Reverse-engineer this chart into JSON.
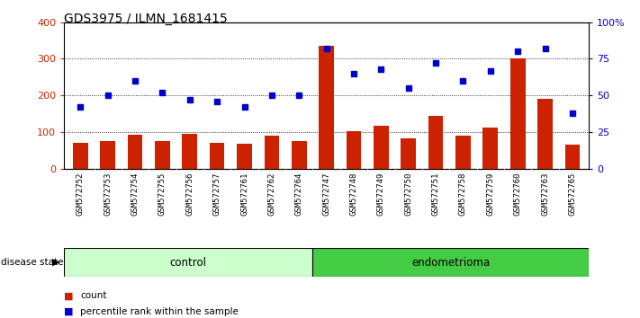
{
  "title": "GDS3975 / ILMN_1681415",
  "samples": [
    "GSM572752",
    "GSM572753",
    "GSM572754",
    "GSM572755",
    "GSM572756",
    "GSM572757",
    "GSM572761",
    "GSM572762",
    "GSM572764",
    "GSM572747",
    "GSM572748",
    "GSM572749",
    "GSM572750",
    "GSM572751",
    "GSM572758",
    "GSM572759",
    "GSM572760",
    "GSM572763",
    "GSM572765"
  ],
  "counts": [
    70,
    75,
    92,
    75,
    95,
    70,
    68,
    90,
    75,
    335,
    103,
    118,
    82,
    145,
    90,
    112,
    300,
    190,
    65
  ],
  "percentiles": [
    42,
    50,
    60,
    52,
    47,
    46,
    42,
    50,
    50,
    82,
    65,
    68,
    55,
    72,
    60,
    67,
    80,
    82,
    38
  ],
  "control_count": 9,
  "endometrioma_count": 10,
  "bar_color": "#cc2200",
  "dot_color": "#0000cc",
  "control_bg": "#ccffcc",
  "endometrioma_bg": "#44cc44",
  "label_bg": "#cccccc",
  "ylim_left": [
    0,
    400
  ],
  "ylim_right": [
    0,
    100
  ],
  "yticks_left": [
    0,
    100,
    200,
    300,
    400
  ],
  "yticks_right": [
    0,
    25,
    50,
    75,
    100
  ],
  "ytick_labels_right": [
    "0",
    "25",
    "50",
    "75",
    "100%"
  ]
}
